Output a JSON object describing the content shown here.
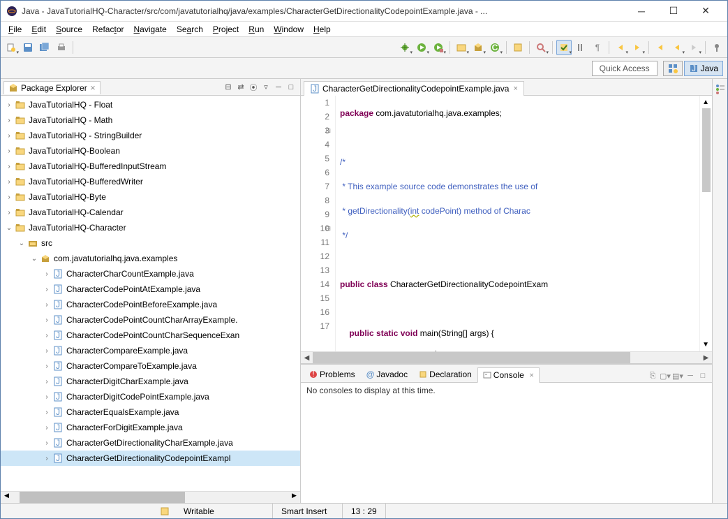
{
  "window": {
    "title": "Java - JavaTutorialHQ-Character/src/com/javatutorialhq/java/examples/CharacterGetDirectionalityCodepointExample.java - ..."
  },
  "menubar": [
    "File",
    "Edit",
    "Source",
    "Refactor",
    "Navigate",
    "Search",
    "Project",
    "Run",
    "Window",
    "Help"
  ],
  "quick_access": "Quick Access",
  "perspective": {
    "java": "Java"
  },
  "package_explorer": {
    "title": "Package Explorer",
    "projects_closed": [
      "JavaTutorialHQ - Float",
      "JavaTutorialHQ - Math",
      "JavaTutorialHQ - StringBuilder",
      "JavaTutorialHQ-Boolean",
      "JavaTutorialHQ-BufferedInputStream",
      "JavaTutorialHQ-BufferedWriter",
      "JavaTutorialHQ-Byte",
      "JavaTutorialHQ-Calendar"
    ],
    "project_open": "JavaTutorialHQ-Character",
    "src": "src",
    "package": "com.javatutorialhq.java.examples",
    "files": [
      "CharacterCharCountExample.java",
      "CharacterCodePointAtExample.java",
      "CharacterCodePointBeforeExample.java",
      "CharacterCodePointCountCharArrayExample.",
      "CharacterCodePointCountCharSequenceExan",
      "CharacterCompareExample.java",
      "CharacterCompareToExample.java",
      "CharacterDigitCharExample.java",
      "CharacterDigitCodePointExample.java",
      "CharacterEqualsExample.java",
      "CharacterForDigitExample.java",
      "CharacterGetDirectionalityCharExample.java",
      "CharacterGetDirectionalityCodepointExampl"
    ],
    "selected_index": 12
  },
  "editor": {
    "tab_title": "CharacterGetDirectionalityCodepointExample.java",
    "line_numbers": [
      1,
      2,
      3,
      4,
      5,
      6,
      7,
      8,
      9,
      10,
      11,
      12,
      13,
      14,
      15,
      16,
      17
    ]
  },
  "bottom": {
    "tabs": [
      "Problems",
      "Javadoc",
      "Declaration",
      "Console"
    ],
    "active": 3,
    "console_msg": "No consoles to display at this time."
  },
  "status": {
    "writable": "Writable",
    "insert": "Smart Insert",
    "pos": "13 : 29"
  },
  "colors": {
    "keyword": "#7f0055",
    "comment": "#3f7f5f",
    "javadoc": "#3f5fbf",
    "selection": "#cde6f7",
    "line_highlight": "#eaf3fb"
  }
}
